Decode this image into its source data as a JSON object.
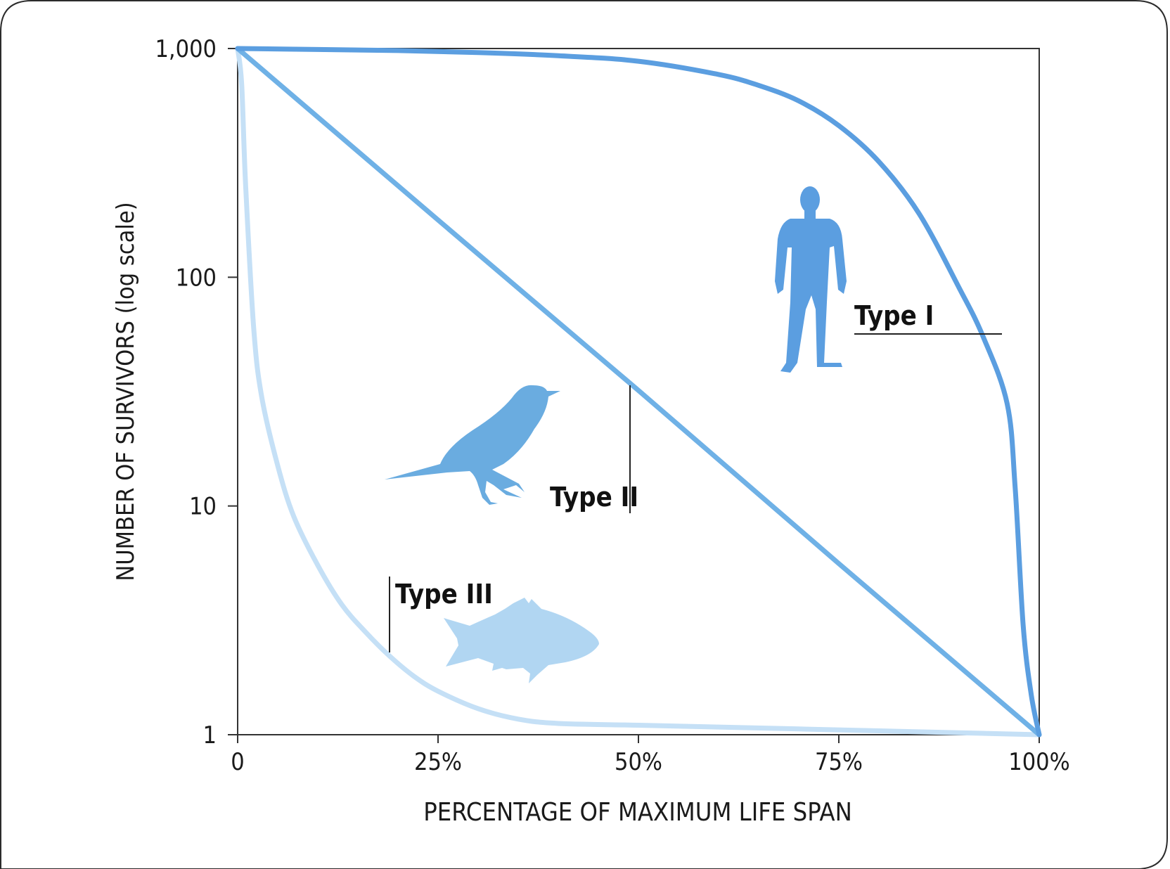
{
  "chart_data": {
    "type": "line",
    "xlabel": "PERCENTAGE OF MAXIMUM LIFE SPAN",
    "ylabel": "NUMBER OF SURVIVORS (log scale)",
    "x_scale": "linear",
    "y_scale": "log",
    "xlim": [
      0,
      100
    ],
    "ylim": [
      1,
      1000
    ],
    "x_ticks": [
      0,
      25,
      50,
      75,
      100
    ],
    "x_tick_labels": [
      "0",
      "25%",
      "50%",
      "75%",
      "100%"
    ],
    "y_ticks": [
      1,
      10,
      100,
      1000
    ],
    "y_tick_labels": [
      "1",
      "10",
      "100",
      "1,000"
    ],
    "grid": false,
    "series": [
      {
        "name": "Type I",
        "color": "#5b9ee0",
        "x": [
          0,
          10,
          20,
          30,
          40,
          50,
          60,
          65,
          70,
          75,
          80,
          85,
          90,
          93,
          96,
          97,
          98,
          99,
          100
        ],
        "y": [
          1000,
          990,
          980,
          960,
          930,
          880,
          770,
          690,
          590,
          460,
          320,
          190,
          90,
          55,
          28,
          12,
          3,
          1.5,
          1
        ]
      },
      {
        "name": "Type II",
        "color": "#6fb1e6",
        "x": [
          0,
          25,
          50,
          75,
          100
        ],
        "y": [
          1000,
          178,
          32,
          5.6,
          1
        ]
      },
      {
        "name": "Type III",
        "color": "#c5e0f6",
        "x": [
          0,
          0.5,
          1,
          2,
          3,
          5,
          7,
          10,
          13,
          16,
          19,
          22,
          25,
          30,
          35,
          40,
          50,
          60,
          70,
          80,
          90,
          100
        ],
        "y": [
          1000,
          700,
          250,
          60,
          30,
          15,
          9,
          5.5,
          3.7,
          2.8,
          2.2,
          1.8,
          1.55,
          1.3,
          1.17,
          1.12,
          1.1,
          1.08,
          1.06,
          1.04,
          1.02,
          1
        ]
      }
    ],
    "annotations": [
      {
        "text": "Type I",
        "series": "Type I"
      },
      {
        "text": "Type II",
        "series": "Type II"
      },
      {
        "text": "Type III",
        "series": "Type III"
      }
    ]
  },
  "icons": {
    "type1": "human-silhouette-icon",
    "type2": "bird-silhouette-icon",
    "type3": "fish-silhouette-icon"
  },
  "colors": {
    "icon_type1": "#5b9ee0",
    "icon_type2": "#6aace0",
    "icon_type3": "#b1d6f2",
    "frame": "#333333"
  }
}
